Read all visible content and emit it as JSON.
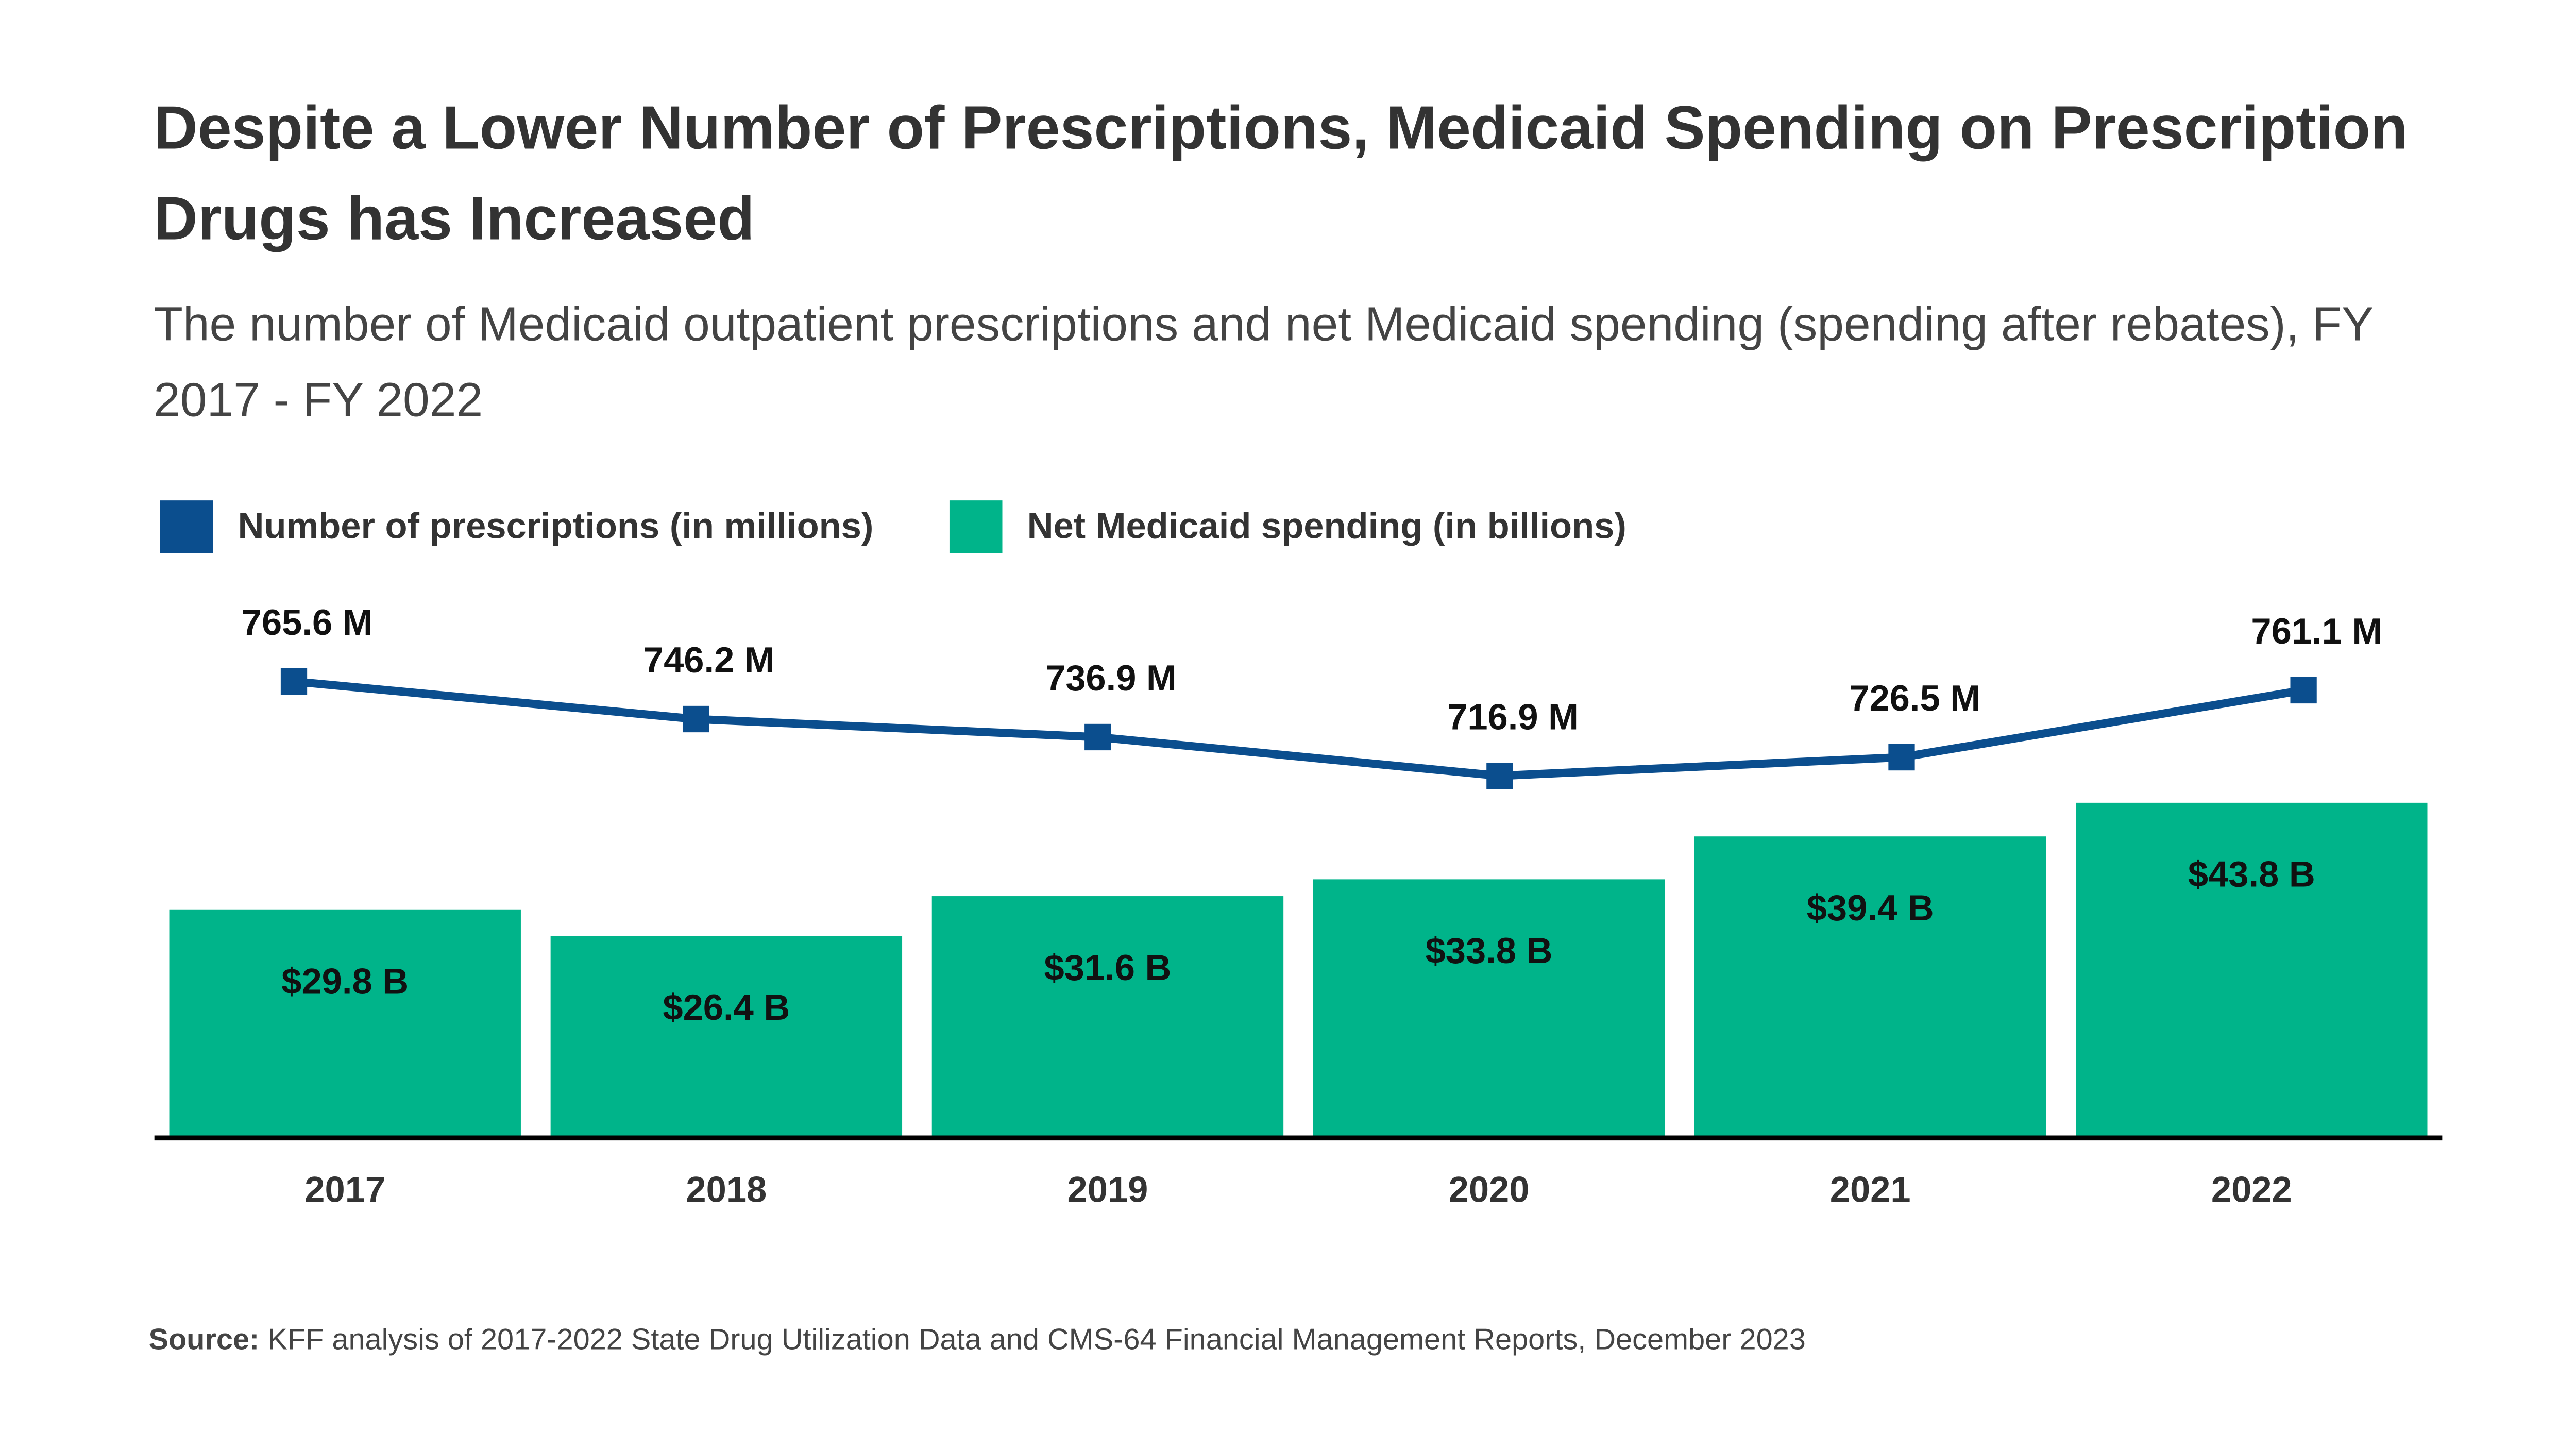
{
  "chart_data": {
    "type": "bar",
    "title": "Despite a Lower Number of Prescriptions, Medicaid Spending on Prescription Drugs has Increased",
    "subtitle": "The number of Medicaid outpatient prescriptions and net Medicaid spending (spending after rebates), FY 2017 - FY 2022",
    "categories": [
      "2017",
      "2018",
      "2019",
      "2020",
      "2021",
      "2022"
    ],
    "series": [
      {
        "name": "Number of prescriptions (in millions)",
        "type": "line",
        "axis": "y2",
        "color": "#0b4e8e",
        "values": [
          765.6,
          746.2,
          736.9,
          716.9,
          726.5,
          761.1
        ],
        "value_labels": [
          "765.6 M",
          "746.2 M",
          "736.9 M",
          "716.9 M",
          "726.5 M",
          "761.1 M"
        ]
      },
      {
        "name": "Net Medicaid spending (in billions)",
        "type": "bar",
        "color": "#00b48a",
        "values": [
          29.8,
          26.4,
          31.6,
          33.8,
          39.4,
          43.8
        ],
        "value_labels": [
          "$29.8 B",
          "$26.4 B",
          "$31.6 B",
          "$33.8 B",
          "$39.4 B",
          "$43.8 B"
        ]
      }
    ],
    "ylim": [
      0,
      60
    ],
    "y2lim": [
      530,
      767
    ],
    "legend": "top-left",
    "source_label": "Source:",
    "source": "KFF analysis of 2017-2022 State Drug Utilization Data and CMS-64 Financial Management Reports, December 2023"
  }
}
